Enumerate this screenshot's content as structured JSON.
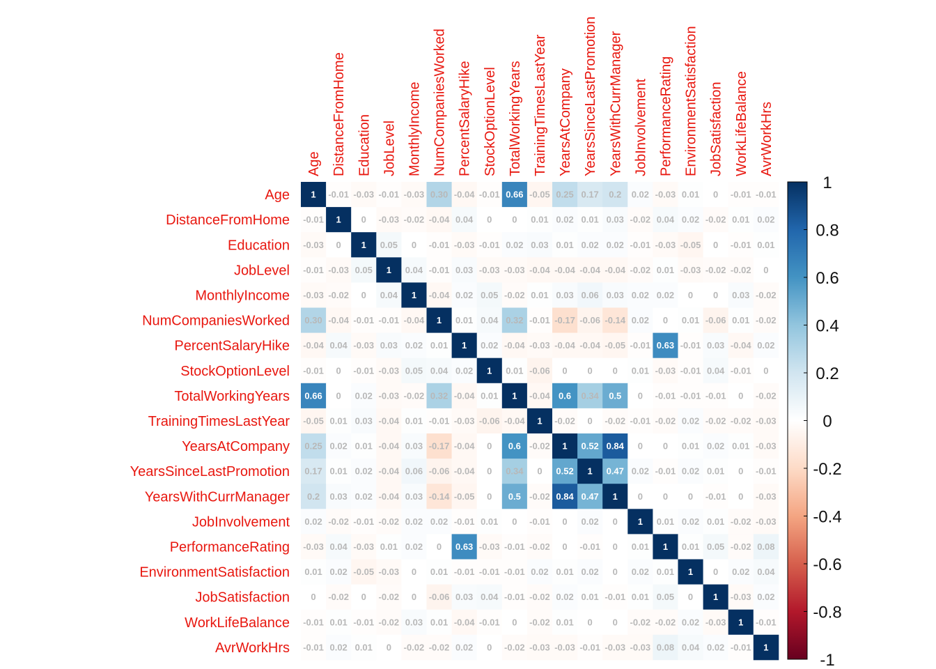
{
  "chart_data": {
    "type": "heatmap",
    "variables": [
      "Age",
      "DistanceFromHome",
      "Education",
      "JobLevel",
      "MonthlyIncome",
      "NumCompaniesWorked",
      "PercentSalaryHike",
      "StockOptionLevel",
      "TotalWorkingYears",
      "TrainingTimesLastYear",
      "YearsAtCompany",
      "YearsSinceLastPromotion",
      "YearsWithCurrManager",
      "JobInvolvement",
      "PerformanceRating",
      "EnvironmentSatisfaction",
      "JobSatisfaction",
      "WorkLifeBalance",
      "AvrWorkHrs"
    ],
    "matrix": [
      [
        1,
        -0.01,
        -0.03,
        -0.01,
        -0.03,
        0.3,
        -0.04,
        -0.01,
        0.66,
        -0.05,
        0.25,
        0.17,
        0.2,
        0.02,
        -0.03,
        0.01,
        0,
        -0.01,
        -0.01
      ],
      [
        -0.01,
        1,
        0,
        -0.03,
        -0.02,
        -0.04,
        0.04,
        0,
        0,
        0.01,
        0.02,
        0.01,
        0.03,
        -0.02,
        0.04,
        0.02,
        -0.02,
        0.01,
        0.02
      ],
      [
        -0.03,
        0,
        1,
        0.05,
        0,
        -0.01,
        -0.03,
        -0.01,
        0.02,
        0.03,
        0.01,
        0.02,
        0.02,
        -0.01,
        -0.03,
        -0.05,
        0,
        -0.01,
        0.01
      ],
      [
        -0.01,
        -0.03,
        0.05,
        1,
        0.04,
        -0.01,
        0.03,
        -0.03,
        -0.03,
        -0.04,
        -0.04,
        -0.04,
        -0.04,
        -0.02,
        0.01,
        -0.03,
        -0.02,
        -0.02,
        0
      ],
      [
        -0.03,
        -0.02,
        0,
        0.04,
        1,
        -0.04,
        0.02,
        0.05,
        -0.02,
        0.01,
        0.03,
        0.06,
        0.03,
        0.02,
        0.02,
        0,
        0,
        0.03,
        -0.02
      ],
      [
        0.3,
        -0.04,
        -0.01,
        -0.01,
        -0.04,
        1,
        0.01,
        0.04,
        0.32,
        -0.01,
        -0.17,
        -0.06,
        -0.14,
        0.02,
        0,
        0.01,
        -0.06,
        0.01,
        -0.02
      ],
      [
        -0.04,
        0.04,
        -0.03,
        0.03,
        0.02,
        0.01,
        1,
        0.02,
        -0.04,
        -0.03,
        -0.04,
        -0.04,
        -0.05,
        -0.01,
        0.63,
        -0.01,
        0.03,
        -0.04,
        0.02
      ],
      [
        -0.01,
        0,
        -0.01,
        -0.03,
        0.05,
        0.04,
        0.02,
        1,
        0.01,
        -0.06,
        0,
        0,
        0,
        0.01,
        -0.03,
        -0.01,
        0.04,
        -0.01,
        0
      ],
      [
        0.66,
        0,
        0.02,
        -0.03,
        -0.02,
        0.32,
        -0.04,
        0.01,
        1,
        -0.04,
        0.6,
        0.34,
        0.5,
        0,
        -0.01,
        -0.01,
        -0.01,
        0,
        -0.02
      ],
      [
        -0.05,
        0.01,
        0.03,
        -0.04,
        0.01,
        -0.01,
        -0.03,
        -0.06,
        -0.04,
        1,
        -0.02,
        0,
        -0.02,
        -0.01,
        -0.02,
        0.02,
        -0.02,
        -0.02,
        -0.03
      ],
      [
        0.25,
        0.02,
        0.01,
        -0.04,
        0.03,
        -0.17,
        -0.04,
        0,
        0.6,
        -0.02,
        1,
        0.52,
        0.84,
        0,
        0,
        0.01,
        0.02,
        0.01,
        -0.03
      ],
      [
        0.17,
        0.01,
        0.02,
        -0.04,
        0.06,
        -0.06,
        -0.04,
        0,
        0.34,
        0,
        0.52,
        1,
        0.47,
        0.02,
        -0.01,
        0.02,
        0.01,
        0,
        -0.01
      ],
      [
        0.2,
        0.03,
        0.02,
        -0.04,
        0.03,
        -0.14,
        -0.05,
        0,
        0.5,
        -0.02,
        0.84,
        0.47,
        1,
        0,
        0,
        0,
        -0.01,
        0,
        -0.03
      ],
      [
        0.02,
        -0.02,
        -0.01,
        -0.02,
        0.02,
        0.02,
        -0.01,
        0.01,
        0,
        -0.01,
        0,
        0.02,
        0,
        1,
        0.01,
        0.02,
        0.01,
        -0.02,
        -0.03
      ],
      [
        -0.03,
        0.04,
        -0.03,
        0.01,
        0.02,
        0,
        0.63,
        -0.03,
        -0.01,
        -0.02,
        0,
        -0.01,
        0,
        0.01,
        1,
        0.01,
        0.05,
        -0.02,
        0.08
      ],
      [
        0.01,
        0.02,
        -0.05,
        -0.03,
        0,
        0.01,
        -0.01,
        -0.01,
        -0.01,
        0.02,
        0.01,
        0.02,
        0,
        0.02,
        0.01,
        1,
        0,
        0.02,
        0.04
      ],
      [
        0,
        -0.02,
        0,
        -0.02,
        0,
        -0.06,
        0.03,
        0.04,
        -0.01,
        -0.02,
        0.02,
        0.01,
        -0.01,
        0.01,
        0.05,
        0,
        1,
        -0.03,
        0.02
      ],
      [
        -0.01,
        0.01,
        -0.01,
        -0.02,
        0.03,
        0.01,
        -0.04,
        -0.01,
        0,
        -0.02,
        0.01,
        0,
        0,
        -0.02,
        -0.02,
        0.02,
        -0.03,
        1,
        -0.01
      ],
      [
        -0.01,
        0.02,
        0.01,
        0,
        -0.02,
        -0.02,
        0.02,
        0,
        -0.02,
        -0.03,
        -0.03,
        -0.01,
        -0.03,
        -0.03,
        0.08,
        0.04,
        0.02,
        -0.01,
        1
      ]
    ],
    "value_labels": [
      [
        "1",
        "-0.01",
        "-0.03",
        "-0.01",
        "-0.03",
        "0.30",
        "-0.04",
        "-0.01",
        "0.66",
        "-0.05",
        "0.25",
        "0.17",
        "0.2",
        "0.02",
        "-0.03",
        "0.01",
        "0",
        "-0.01",
        "-0.01"
      ],
      [
        "-0.01",
        "1",
        "0",
        "-0.03",
        "-0.02",
        "-0.04",
        "0.04",
        "0",
        "0",
        "0.01",
        "0.02",
        "0.01",
        "0.03",
        "-0.02",
        "0.04",
        "0.02",
        "-0.02",
        "0.01",
        "0.02"
      ],
      [
        "-0.03",
        "0",
        "1",
        "0.05",
        "0",
        "-0.01",
        "-0.03",
        "-0.01",
        "0.02",
        "0.03",
        "0.01",
        "0.02",
        "0.02",
        "-0.01",
        "-0.03",
        "-0.05",
        "0",
        "-0.01",
        "0.01"
      ],
      [
        "-0.01",
        "-0.03",
        "0.05",
        "1",
        "0.04",
        "-0.01",
        "0.03",
        "-0.03",
        "-0.03",
        "-0.04",
        "-0.04",
        "-0.04",
        "-0.04",
        "-0.02",
        "0.01",
        "-0.03",
        "-0.02",
        "-0.02",
        "0"
      ],
      [
        "-0.03",
        "-0.02",
        "0",
        "0.04",
        "1",
        "-0.04",
        "0.02",
        "0.05",
        "-0.02",
        "0.01",
        "0.03",
        "0.06",
        "0.03",
        "0.02",
        "0.02",
        "0",
        "0",
        "0.03",
        "-0.02"
      ],
      [
        "0.30",
        "-0.04",
        "-0.01",
        "-0.01",
        "-0.04",
        "1",
        "0.01",
        "0.04",
        "0.32",
        "-0.01",
        "-0.17",
        "-0.06",
        "-0.14",
        "0.02",
        "0",
        "0.01",
        "-0.06",
        "0.01",
        "-0.02"
      ],
      [
        "-0.04",
        "0.04",
        "-0.03",
        "0.03",
        "0.02",
        "0.01",
        "1",
        "0.02",
        "-0.04",
        "-0.03",
        "-0.04",
        "-0.04",
        "-0.05",
        "-0.01",
        "0.63",
        "-0.01",
        "0.03",
        "-0.04",
        "0.02"
      ],
      [
        "-0.01",
        "0",
        "-0.01",
        "-0.03",
        "0.05",
        "0.04",
        "0.02",
        "1",
        "0.01",
        "-0.06",
        "0",
        "0",
        "0",
        "0.01",
        "-0.03",
        "-0.01",
        "0.04",
        "-0.01",
        "0"
      ],
      [
        "0.66",
        "0",
        "0.02",
        "-0.03",
        "-0.02",
        "0.32",
        "-0.04",
        "0.01",
        "1",
        "-0.04",
        "0.6",
        "0.34",
        "0.5",
        "0",
        "-0.01",
        "-0.01",
        "-0.01",
        "0",
        "-0.02"
      ],
      [
        "-0.05",
        "0.01",
        "0.03",
        "-0.04",
        "0.01",
        "-0.01",
        "-0.03",
        "-0.06",
        "-0.04",
        "1",
        "-0.02",
        "0",
        "-0.02",
        "-0.01",
        "-0.02",
        "0.02",
        "-0.02",
        "-0.02",
        "-0.03"
      ],
      [
        "0.25",
        "0.02",
        "0.01",
        "-0.04",
        "0.03",
        "-0.17",
        "-0.04",
        "0",
        "0.6",
        "-0.02",
        "1",
        "0.52",
        "0.84",
        "0",
        "0",
        "0.01",
        "0.02",
        "0.01",
        "-0.03"
      ],
      [
        "0.17",
        "0.01",
        "0.02",
        "-0.04",
        "0.06",
        "-0.06",
        "-0.04",
        "0",
        "0.34",
        "0",
        "0.52",
        "1",
        "0.47",
        "0.02",
        "-0.01",
        "0.02",
        "0.01",
        "0",
        "-0.01"
      ],
      [
        "0.2",
        "0.03",
        "0.02",
        "-0.04",
        "0.03",
        "-0.14",
        "-0.05",
        "0",
        "0.5",
        "-0.02",
        "0.84",
        "0.47",
        "1",
        "0",
        "0",
        "0",
        "-0.01",
        "0",
        "-0.03"
      ],
      [
        "0.02",
        "-0.02",
        "-0.01",
        "-0.02",
        "0.02",
        "0.02",
        "-0.01",
        "0.01",
        "0",
        "-0.01",
        "0",
        "0.02",
        "0",
        "1",
        "0.01",
        "0.02",
        "0.01",
        "-0.02",
        "-0.03"
      ],
      [
        "-0.03",
        "0.04",
        "-0.03",
        "0.01",
        "0.02",
        "0",
        "0.63",
        "-0.03",
        "-0.01",
        "-0.02",
        "0",
        "-0.01",
        "0",
        "0.01",
        "1",
        "0.01",
        "0.05",
        "-0.02",
        "0.08"
      ],
      [
        "0.01",
        "0.02",
        "-0.05",
        "-0.03",
        "0",
        "0.01",
        "-0.01",
        "-0.01",
        "-0.01",
        "0.02",
        "0.01",
        "0.02",
        "0",
        "0.02",
        "0.01",
        "1",
        "0",
        "0.02",
        "0.04"
      ],
      [
        "0",
        "-0.02",
        "0",
        "-0.02",
        "0",
        "-0.06",
        "0.03",
        "0.04",
        "-0.01",
        "-0.02",
        "0.02",
        "0.01",
        "-0.01",
        "0.01",
        "0.05",
        "0",
        "1",
        "-0.03",
        "0.02"
      ],
      [
        "-0.01",
        "0.01",
        "-0.01",
        "-0.02",
        "0.03",
        "0.01",
        "-0.04",
        "-0.01",
        "0",
        "-0.02",
        "0.01",
        "0",
        "0",
        "-0.02",
        "-0.02",
        "0.02",
        "-0.03",
        "1",
        "-0.01"
      ],
      [
        "-0.01",
        "0.02",
        "0.01",
        "0",
        "-0.02",
        "-0.02",
        "0.02",
        "0",
        "-0.02",
        "-0.03",
        "-0.03",
        "-0.01",
        "-0.03",
        "-0.03",
        "0.08",
        "0.04",
        "0.02",
        "-0.01",
        "1"
      ]
    ],
    "colorbar": {
      "range": [
        -1,
        1
      ],
      "ticks": [
        "1",
        "0.8",
        "0.6",
        "0.4",
        "0.2",
        "0",
        "-0.2",
        "-0.4",
        "-0.6",
        "-0.8",
        "-1"
      ],
      "palette": [
        "#67001f",
        "#b2182b",
        "#d6604d",
        "#f4a582",
        "#fddbc7",
        "#ffffff",
        "#d1e5f0",
        "#92c5de",
        "#4393c3",
        "#2166ac",
        "#053061"
      ]
    },
    "label_color": "#e8170f",
    "value_label_color_light": "#ffffff",
    "value_label_color_dark": "#b8b8b8",
    "grid": false,
    "legend_position": "right"
  }
}
